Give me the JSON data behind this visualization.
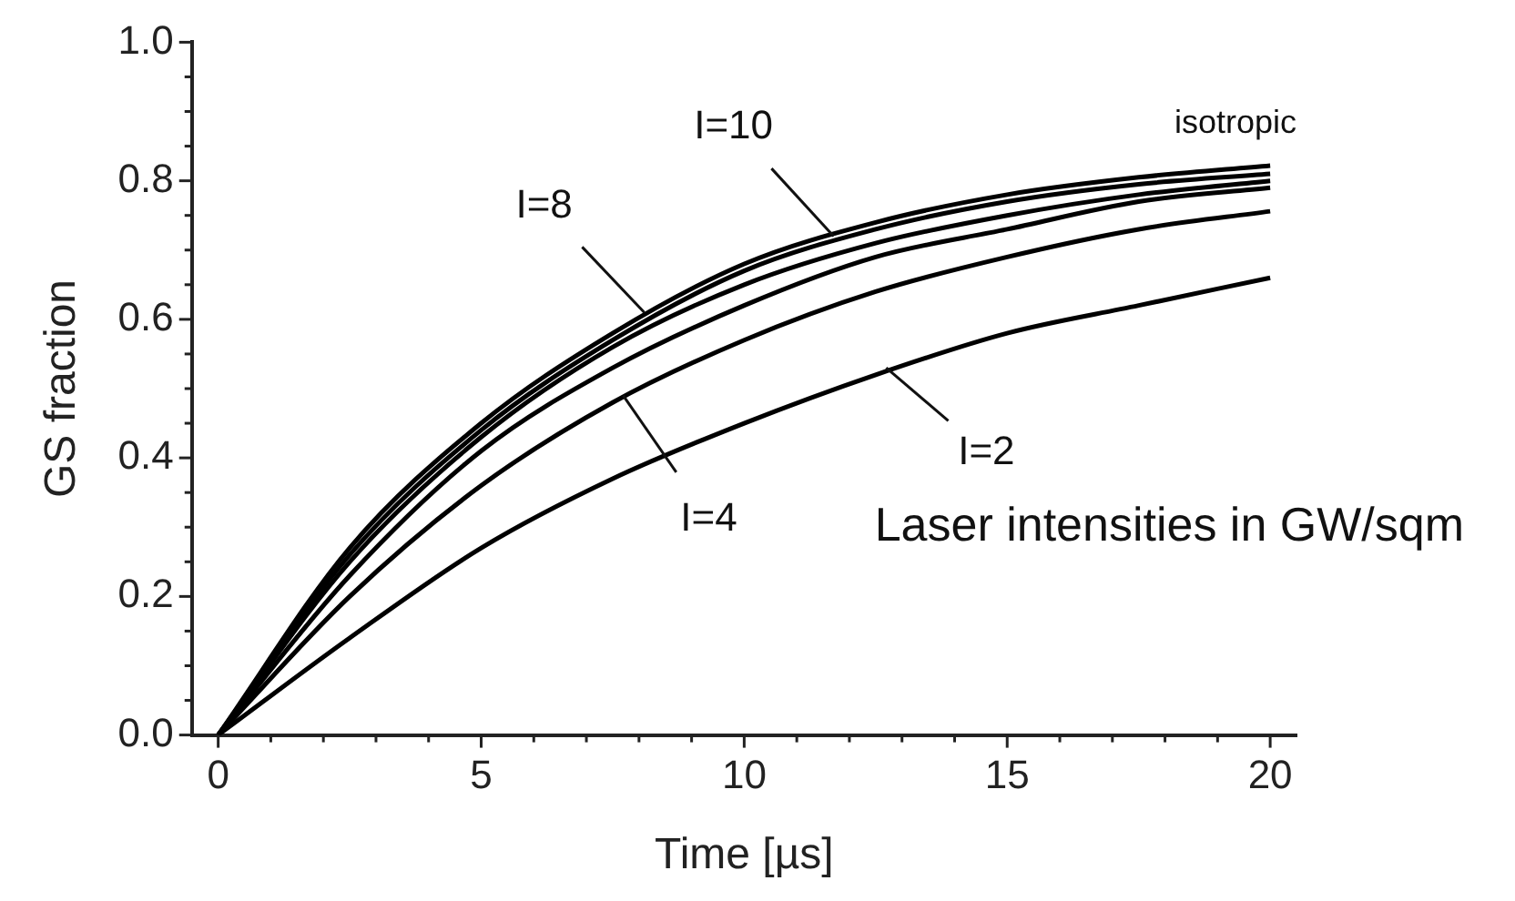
{
  "chart_data": {
    "type": "line",
    "xlabel": "Time [µs]",
    "ylabel": "GS fraction",
    "x": [
      0,
      2.5,
      5,
      7.5,
      10,
      12.5,
      15,
      17.5,
      20
    ],
    "series": [
      {
        "color": "#000000",
        "values": [
          0,
          0.14,
          0.27,
          0.37,
          0.45,
          0.52,
          0.58,
          0.62,
          0.66
        ]
      },
      {
        "color": "#000000",
        "values": [
          0,
          0.2,
          0.36,
          0.48,
          0.57,
          0.64,
          0.69,
          0.73,
          0.756
        ]
      },
      {
        "color": "#000000",
        "values": [
          0,
          0.23,
          0.41,
          0.53,
          0.62,
          0.69,
          0.73,
          0.77,
          0.79
        ]
      },
      {
        "color": "#000000",
        "values": [
          0,
          0.25,
          0.43,
          0.56,
          0.65,
          0.71,
          0.75,
          0.78,
          0.8
        ]
      },
      {
        "color": "#000000",
        "values": [
          0,
          0.26,
          0.44,
          0.57,
          0.67,
          0.73,
          0.77,
          0.795,
          0.81
        ]
      },
      {
        "color": "#000000",
        "values": [
          0,
          0.27,
          0.45,
          0.58,
          0.68,
          0.74,
          0.78,
          0.805,
          0.822
        ]
      }
    ],
    "xlim": [
      -0.5,
      20.5
    ],
    "ylim": [
      0,
      1
    ],
    "xticks": [
      0,
      {
        "value": 1,
        "label": null
      },
      {
        "value": 2,
        "label": null
      },
      {
        "value": 3,
        "label": null
      },
      {
        "value": 4,
        "label": null
      },
      5,
      {
        "value": 6,
        "label": null
      },
      {
        "value": 7,
        "label": null
      },
      {
        "value": 8,
        "label": null
      },
      {
        "value": 9,
        "label": null
      },
      10,
      {
        "value": 11,
        "label": null
      },
      {
        "value": 12,
        "label": null
      },
      {
        "value": 13,
        "label": null
      },
      {
        "value": 14,
        "label": null
      },
      15,
      {
        "value": 16,
        "label": null
      },
      {
        "value": 17,
        "label": null
      },
      {
        "value": 18,
        "label": null
      },
      {
        "value": 19,
        "label": null
      },
      20
    ],
    "yticks": [
      {
        "value": 0,
        "label": "0.0"
      },
      {
        "value": 0.05,
        "label": null
      },
      {
        "value": 0.1,
        "label": null
      },
      {
        "value": 0.15,
        "label": null
      },
      0.2,
      {
        "value": 0.25,
        "label": null
      },
      {
        "value": 0.3,
        "label": null
      },
      {
        "value": 0.35,
        "label": null
      },
      0.4,
      {
        "value": 0.45,
        "label": null
      },
      {
        "value": 0.5,
        "label": null
      },
      {
        "value": 0.55,
        "label": null
      },
      0.6,
      {
        "value": 0.65,
        "label": null
      },
      {
        "value": 0.7,
        "label": null
      },
      {
        "value": 0.75,
        "label": null
      },
      0.8,
      {
        "value": 0.85,
        "label": null
      },
      {
        "value": 0.9,
        "label": null
      },
      {
        "value": 0.95,
        "label": null
      },
      {
        "value": 1,
        "label": "1.0"
      }
    ],
    "grid": false,
    "legend": false,
    "marker": "none",
    "line_style": "solid",
    "annotations": [
      {
        "text": "I=8",
        "x": 8.1,
        "y": 0.61
      },
      {
        "text": "I=10",
        "x": 11.7,
        "y": 0.72
      },
      {
        "text": "I=2",
        "x": 12.7,
        "y": 0.53
      },
      {
        "text": "I=4",
        "x": 7.7,
        "y": 0.49
      },
      "isotropic",
      "Laser intensities in GW/sqm"
    ]
  }
}
